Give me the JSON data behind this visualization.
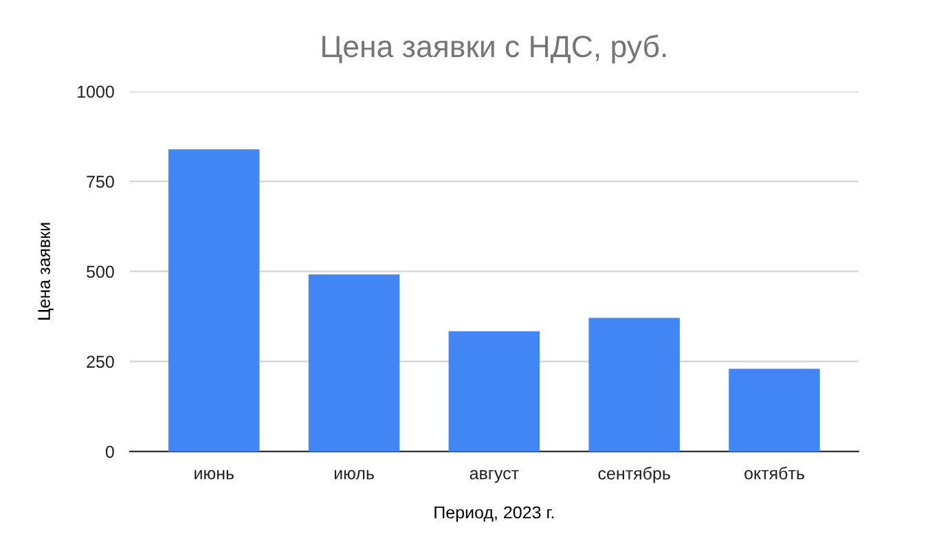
{
  "chart_data": {
    "type": "bar",
    "title": "Цена заявки с НДС, руб.",
    "xlabel": "Период, 2023 г.",
    "ylabel": "Цена заявки",
    "categories": [
      "июнь",
      "июль",
      "август",
      "сентябрь",
      "октябть"
    ],
    "values": [
      839,
      492,
      334,
      371,
      230
    ],
    "color": "#4285f4",
    "ylim": [
      0,
      1000
    ],
    "yticks": [
      0,
      250,
      500,
      750,
      1000
    ],
    "grid": "y",
    "legend": false
  }
}
